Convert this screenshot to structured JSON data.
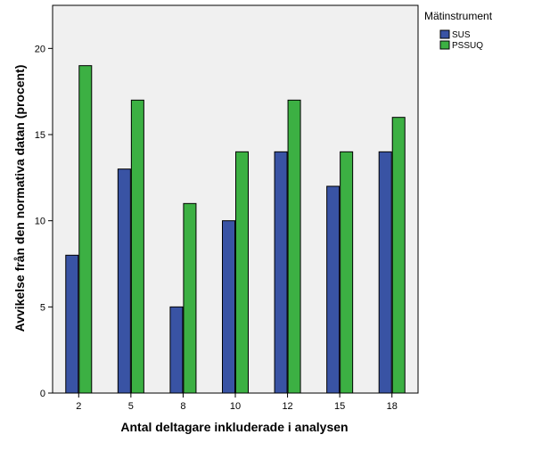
{
  "chart_data": {
    "type": "bar",
    "title": "",
    "xlabel": "Antal deltagare inkluderade i analysen",
    "ylabel": "Avvikelse från den normativa datan (procent)",
    "categories": [
      "2",
      "5",
      "8",
      "10",
      "12",
      "15",
      "18"
    ],
    "series": [
      {
        "name": "SUS",
        "color": "#3953a4",
        "values": [
          8,
          13,
          5,
          10,
          14,
          12,
          14
        ]
      },
      {
        "name": "PSSUQ",
        "color": "#3cb043",
        "values": [
          19,
          17,
          11,
          14,
          17,
          14,
          16
        ]
      }
    ],
    "ylim": [
      0,
      22.5
    ],
    "yticks": [
      0,
      5,
      10,
      15,
      20
    ],
    "legend": {
      "title": "Mätinstrument",
      "position": "right"
    },
    "plot_background": "#f0f0f0",
    "grid": false
  }
}
